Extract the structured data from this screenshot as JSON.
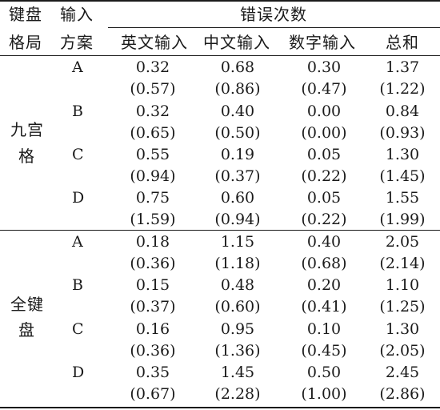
{
  "header": {
    "col_layout": [
      "键盘",
      "格局"
    ],
    "col_scheme": [
      "输入",
      "方案"
    ],
    "error_group": "错误次数",
    "columns": [
      "英文输入",
      "中文输入",
      "数字输入",
      "总和"
    ]
  },
  "layouts": [
    {
      "label": [
        "九宫",
        "格"
      ],
      "schemes": [
        {
          "name": "A",
          "means": [
            "0.32",
            "0.68",
            "0.30",
            "1.37"
          ],
          "sds": [
            "(0.57)",
            "(0.86)",
            "(0.47)",
            "(1.22)"
          ]
        },
        {
          "name": "B",
          "means": [
            "0.32",
            "0.40",
            "0.00",
            "0.84"
          ],
          "sds": [
            "(0.65)",
            "(0.50)",
            "(0.00)",
            "(0.93)"
          ]
        },
        {
          "name": "C",
          "means": [
            "0.55",
            "0.19",
            "0.05",
            "1.30"
          ],
          "sds": [
            "(0.94)",
            "(0.37)",
            "(0.22)",
            "(1.45)"
          ]
        },
        {
          "name": "D",
          "means": [
            "0.75",
            "0.60",
            "0.05",
            "1.55"
          ],
          "sds": [
            "(1.59)",
            "(0.94)",
            "(0.22)",
            "(1.99)"
          ]
        }
      ]
    },
    {
      "label": [
        "全键",
        "盘"
      ],
      "schemes": [
        {
          "name": "A",
          "means": [
            "0.18",
            "1.15",
            "0.40",
            "2.05"
          ],
          "sds": [
            "(0.36)",
            "(1.18)",
            "(0.68)",
            "(2.14)"
          ]
        },
        {
          "name": "B",
          "means": [
            "0.15",
            "0.48",
            "0.20",
            "1.10"
          ],
          "sds": [
            "(0.37)",
            "(0.60)",
            "(0.41)",
            "(1.25)"
          ]
        },
        {
          "name": "C",
          "means": [
            "0.16",
            "0.95",
            "0.10",
            "1.30"
          ],
          "sds": [
            "(0.36)",
            "(1.36)",
            "(0.45)",
            "(2.05)"
          ]
        },
        {
          "name": "D",
          "means": [
            "0.35",
            "1.45",
            "0.50",
            "2.45"
          ],
          "sds": [
            "(0.67)",
            "(2.28)",
            "(1.00)",
            "(2.86)"
          ]
        }
      ]
    }
  ]
}
